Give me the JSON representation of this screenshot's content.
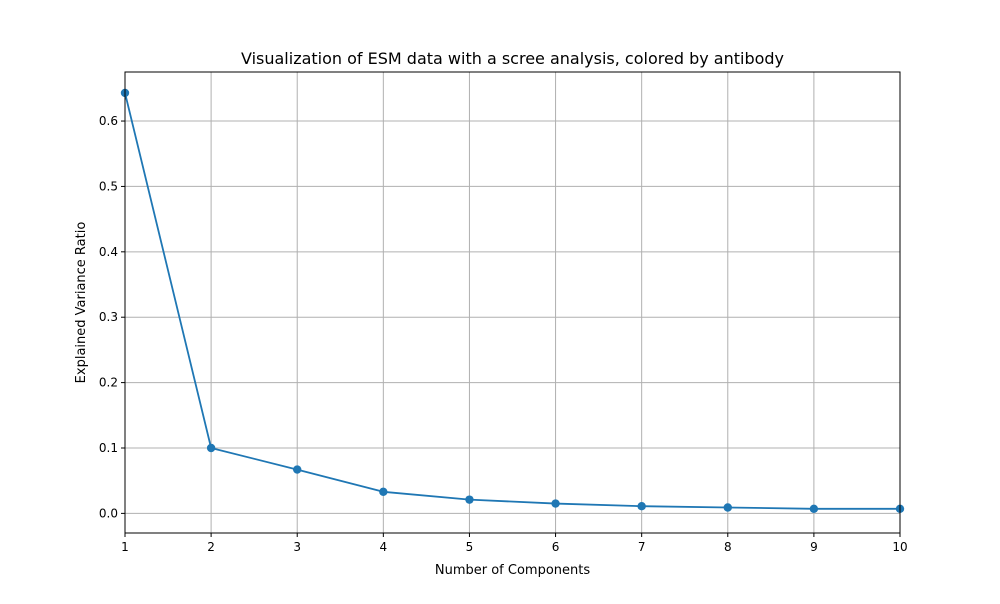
{
  "chart_data": {
    "type": "line",
    "title": "Visualization of ESM data with a scree analysis, colored by antibody",
    "xlabel": "Number of Components",
    "ylabel": "Explained Variance Ratio",
    "x": [
      1,
      2,
      3,
      4,
      5,
      6,
      7,
      8,
      9,
      10
    ],
    "series": [
      {
        "values": [
          0.643,
          0.1,
          0.067,
          0.033,
          0.021,
          0.015,
          0.011,
          0.009,
          0.007,
          0.007
        ],
        "color": "#1f77b4",
        "marker": "circle"
      }
    ],
    "xlim": [
      1,
      10
    ],
    "ylim": [
      -0.03,
      0.675
    ],
    "xticks": [
      1,
      2,
      3,
      4,
      5,
      6,
      7,
      8,
      9,
      10
    ],
    "yticks": [
      0.0,
      0.1,
      0.2,
      0.3,
      0.4,
      0.5,
      0.6
    ],
    "ytick_labels": [
      "0.0",
      "0.1",
      "0.2",
      "0.3",
      "0.4",
      "0.5",
      "0.6"
    ],
    "grid": true,
    "grid_color": "#b0b0b0",
    "legend": "none"
  }
}
